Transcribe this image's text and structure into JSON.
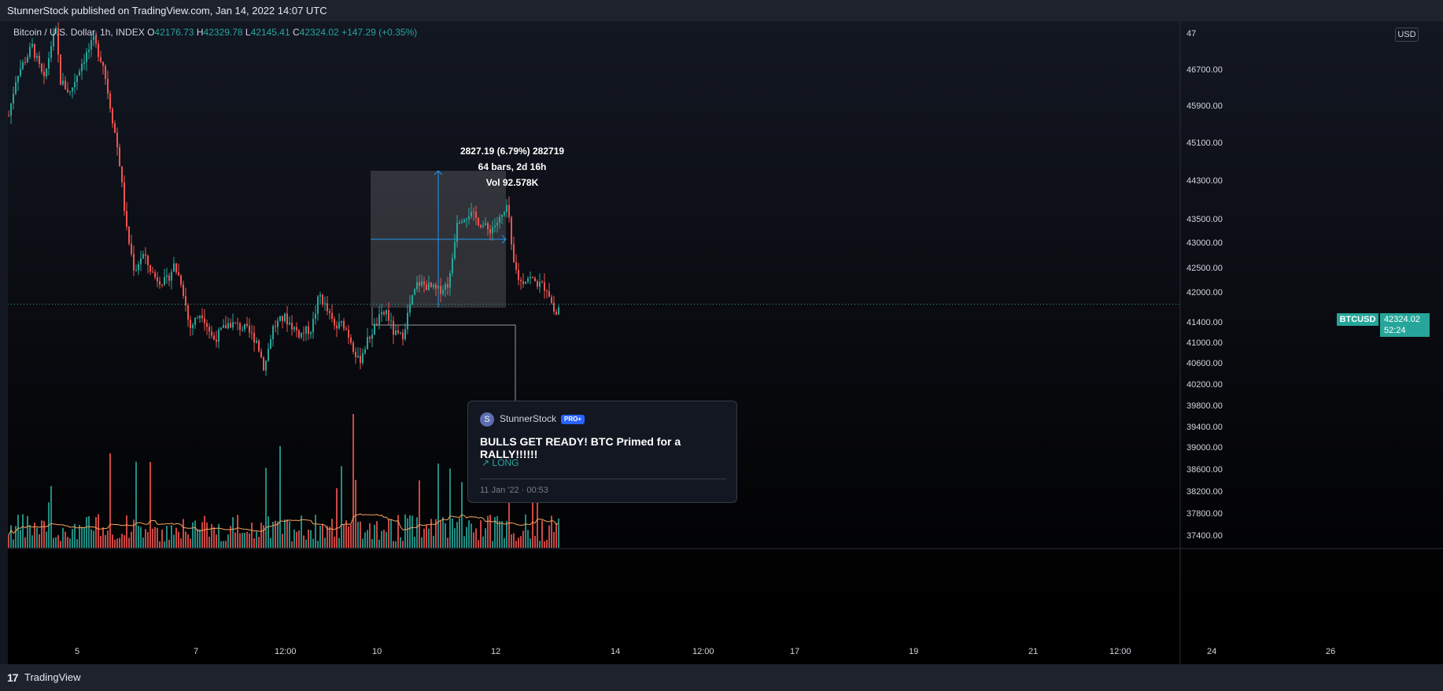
{
  "header": {
    "published": "StunnerStock published on TradingView.com, Jan 14, 2022 14:07 UTC"
  },
  "footer": {
    "brand": "TradingView",
    "logo_icon": "tradingview-logo-icon"
  },
  "symbol": {
    "name": "Bitcoin / U.S. Dollar, 1h, INDEX",
    "o_label": "O",
    "o": "42176.73",
    "h_label": "H",
    "h": "42329.78",
    "l_label": "L",
    "l": "42145.41",
    "c_label": "C",
    "c": "42324.02",
    "change": "+147.29 (+0.35%)"
  },
  "currency_badge": "USD",
  "last_price": {
    "ticker": "BTCUSD",
    "value": "42324.02",
    "countdown": "52:24"
  },
  "measure": {
    "line1": "2827.19 (6.79%) 282719",
    "line2": "64 bars, 2d 16h",
    "line3": "Vol 92.578K"
  },
  "idea": {
    "avatar_letter": "S",
    "author": "StunnerStock",
    "badge": "PRO+",
    "title": "BULLS GET READY! BTC Primed for a RALLY!!!!!!",
    "direction": "↗ LONG",
    "date": "11 Jan '22 · 00:53"
  },
  "colors": {
    "up": "#26a69a",
    "down": "#ef5350",
    "background": "#131722",
    "accent": "#2962ff",
    "ma": "#f7a35c"
  },
  "chart_data": {
    "type": "candlestick",
    "title": "Bitcoin / U.S. Dollar, 1h, INDEX",
    "y_ticks": [
      "47",
      "46700.00",
      "45900.00",
      "45100.00",
      "44300.00",
      "43500.00",
      "43000.00",
      "42500.00",
      "42000.00",
      "41400.00",
      "41000.00",
      "40600.00",
      "40200.00",
      "39800.00",
      "39400.00",
      "39000.00",
      "38600.00",
      "38200.00",
      "37800.00",
      "37400.00"
    ],
    "x_ticks": [
      "5",
      "7",
      "12:00",
      "10",
      "12",
      "14",
      "12:00",
      "17",
      "19",
      "21",
      "12:00",
      "24",
      "26"
    ],
    "price_path": [
      [
        0,
        45600
      ],
      [
        10,
        46300
      ],
      [
        30,
        46800
      ],
      [
        45,
        46200
      ],
      [
        55,
        46900
      ],
      [
        60,
        47050
      ],
      [
        66,
        46200
      ],
      [
        78,
        46000
      ],
      [
        92,
        46500
      ],
      [
        108,
        46900
      ],
      [
        120,
        46500
      ],
      [
        130,
        45700
      ],
      [
        140,
        44900
      ],
      [
        150,
        43600
      ],
      [
        160,
        42900
      ],
      [
        170,
        43200
      ],
      [
        185,
        42800
      ],
      [
        200,
        42700
      ],
      [
        210,
        43000
      ],
      [
        220,
        42700
      ],
      [
        230,
        41900
      ],
      [
        245,
        42200
      ],
      [
        260,
        41700
      ],
      [
        280,
        42000
      ],
      [
        300,
        41900
      ],
      [
        315,
        41700
      ],
      [
        325,
        41200
      ],
      [
        335,
        41900
      ],
      [
        350,
        42100
      ],
      [
        370,
        41800
      ],
      [
        385,
        41900
      ],
      [
        395,
        42500
      ],
      [
        405,
        42200
      ],
      [
        415,
        41900
      ],
      [
        425,
        42000
      ],
      [
        435,
        41700
      ],
      [
        445,
        41300
      ],
      [
        450,
        41500
      ],
      [
        460,
        41800
      ],
      [
        470,
        42050
      ],
      [
        480,
        42200
      ],
      [
        490,
        41800
      ],
      [
        500,
        41750
      ],
      [
        510,
        42300
      ],
      [
        520,
        42700
      ],
      [
        530,
        42650
      ],
      [
        545,
        42550
      ],
      [
        560,
        42700
      ],
      [
        570,
        43800
      ],
      [
        585,
        43900
      ],
      [
        595,
        43800
      ],
      [
        610,
        43600
      ],
      [
        625,
        43800
      ],
      [
        635,
        44000
      ],
      [
        640,
        43100
      ],
      [
        650,
        42700
      ],
      [
        660,
        42800
      ],
      [
        670,
        42700
      ],
      [
        685,
        42600
      ],
      [
        695,
        42100
      ],
      [
        700,
        42324
      ]
    ],
    "volume_seed": 7
  }
}
